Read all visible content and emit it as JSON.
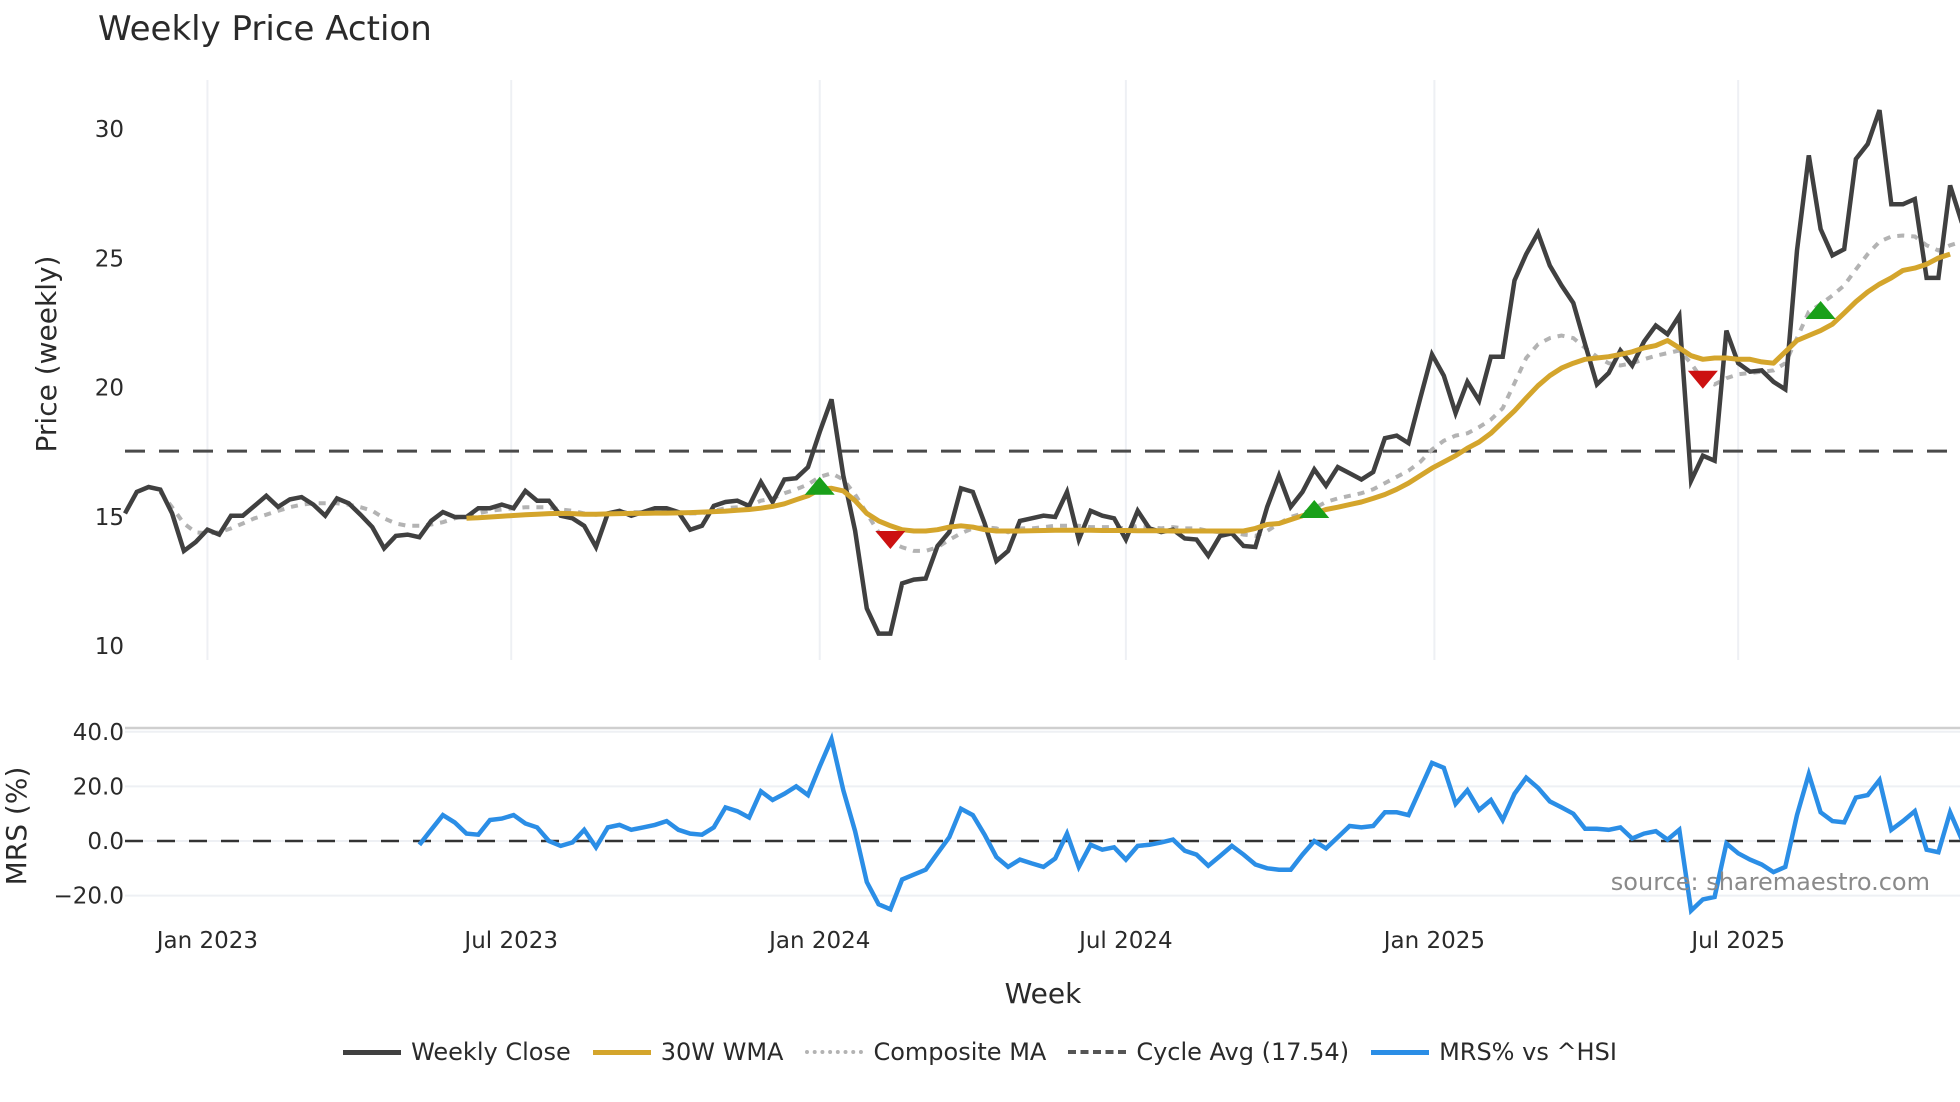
{
  "chart_data": {
    "type": "line",
    "title": "Weekly Price Action",
    "xlabel": "Week",
    "source": "source: sharemaestro.com",
    "x_ticks": [
      {
        "label": "Jan 2023",
        "index": 7
      },
      {
        "label": "Jul 2023",
        "index": 32.8
      },
      {
        "label": "Jan 2024",
        "index": 59
      },
      {
        "label": "Jul 2024",
        "index": 85
      },
      {
        "label": "Jan 2025",
        "index": 111.2
      },
      {
        "label": "Jul 2025",
        "index": 137
      }
    ],
    "price_panel": {
      "ylabel": "Price (weekly)",
      "ylim": [
        9.5,
        31.5
      ],
      "y_ticks": [
        "10",
        "15",
        "20",
        "25",
        "30"
      ],
      "cycle_avg": 17.54,
      "series": [
        {
          "name": "Weekly Close",
          "color": "#404040",
          "start_index": 0,
          "values": [
            15.13,
            15.96,
            16.15,
            16.05,
            15.13,
            13.68,
            14.02,
            14.5,
            14.31,
            15.04,
            15.04,
            15.42,
            15.81,
            15.38,
            15.67,
            15.76,
            15.47,
            15.04,
            15.71,
            15.52,
            15.08,
            14.6,
            13.78,
            14.26,
            14.31,
            14.21,
            14.84,
            15.18,
            14.99,
            14.99,
            15.33,
            15.33,
            15.47,
            15.33,
            16.0,
            15.62,
            15.62,
            15.04,
            14.94,
            14.65,
            13.83,
            15.13,
            15.23,
            15.04,
            15.18,
            15.33,
            15.33,
            15.18,
            14.5,
            14.65,
            15.42,
            15.57,
            15.62,
            15.42,
            16.34,
            15.57,
            16.44,
            16.49,
            16.92,
            18.28,
            19.54,
            16.59,
            14.46,
            11.45,
            10.48,
            10.48,
            12.42,
            12.57,
            12.61,
            13.87,
            14.41,
            16.1,
            15.96,
            14.75,
            13.29,
            13.68,
            14.84,
            14.94,
            15.04,
            14.99,
            15.96,
            14.12,
            15.23,
            15.04,
            14.94,
            14.12,
            15.23,
            14.55,
            14.41,
            14.5,
            14.16,
            14.12,
            13.49,
            14.26,
            14.36,
            13.87,
            13.83,
            15.38,
            16.59,
            15.38,
            15.96,
            16.83,
            16.2,
            16.92,
            16.68,
            16.44,
            16.73,
            18.04,
            18.14,
            17.85,
            19.59,
            21.28,
            20.46,
            19.01,
            20.22,
            19.49,
            21.19,
            21.19,
            24.14,
            25.16,
            25.98,
            24.72,
            23.95,
            23.27,
            21.67,
            20.12,
            20.56,
            21.43,
            20.85,
            21.77,
            22.4,
            22.06,
            22.78,
            16.39,
            17.36,
            17.17,
            22.2,
            20.94,
            20.61,
            20.66,
            20.22,
            19.93,
            25.3,
            28.98,
            26.13,
            25.11,
            25.35,
            28.84,
            29.42,
            30.73,
            27.09,
            27.09,
            27.29,
            24.24,
            24.24,
            27.82,
            26.37
          ]
        },
        {
          "name": "30W WMA",
          "color": "#d4a52c",
          "start_index": 29,
          "values": [
            14.94,
            14.96,
            14.99,
            15.02,
            15.05,
            15.08,
            15.1,
            15.12,
            15.13,
            15.12,
            15.1,
            15.1,
            15.11,
            15.12,
            15.13,
            15.13,
            15.14,
            15.14,
            15.15,
            15.16,
            15.18,
            15.2,
            15.22,
            15.25,
            15.28,
            15.33,
            15.4,
            15.5,
            15.66,
            15.81,
            16.06,
            16.1,
            16.0,
            15.62,
            15.13,
            14.84,
            14.65,
            14.5,
            14.45,
            14.45,
            14.5,
            14.6,
            14.65,
            14.6,
            14.5,
            14.45,
            14.45,
            14.45,
            14.46,
            14.47,
            14.48,
            14.48,
            14.48,
            14.48,
            14.47,
            14.47,
            14.47,
            14.46,
            14.46,
            14.46,
            14.45,
            14.45,
            14.45,
            14.45,
            14.45,
            14.45,
            14.45,
            14.55,
            14.7,
            14.74,
            14.89,
            15.04,
            15.13,
            15.28,
            15.37,
            15.47,
            15.57,
            15.71,
            15.86,
            16.06,
            16.3,
            16.59,
            16.88,
            17.12,
            17.36,
            17.65,
            17.89,
            18.23,
            18.67,
            19.1,
            19.59,
            20.07,
            20.46,
            20.75,
            20.94,
            21.09,
            21.14,
            21.19,
            21.28,
            21.38,
            21.53,
            21.62,
            21.82,
            21.53,
            21.23,
            21.09,
            21.14,
            21.14,
            21.09,
            21.09,
            20.99,
            20.94,
            21.38,
            21.82,
            22.01,
            22.2,
            22.45,
            22.88,
            23.32,
            23.7,
            24.0,
            24.24,
            24.53,
            24.62,
            24.77,
            25.01,
            25.16
          ]
        },
        {
          "name": "Composite MA",
          "color": "#b3b3b3",
          "start_index": 3,
          "values": [
            15.96,
            15.37,
            14.74,
            14.4,
            14.36,
            14.4,
            14.55,
            14.74,
            14.94,
            15.08,
            15.23,
            15.37,
            15.47,
            15.52,
            15.52,
            15.52,
            15.47,
            15.37,
            15.23,
            14.94,
            14.74,
            14.65,
            14.65,
            14.7,
            14.79,
            14.94,
            15.04,
            15.13,
            15.23,
            15.28,
            15.33,
            15.37,
            15.37,
            15.37,
            15.28,
            15.23,
            15.13,
            15.08,
            15.13,
            15.18,
            15.18,
            15.18,
            15.23,
            15.23,
            15.18,
            15.13,
            15.13,
            15.23,
            15.33,
            15.37,
            15.42,
            15.62,
            15.71,
            15.91,
            16.06,
            16.25,
            16.54,
            16.68,
            16.44,
            15.86,
            15.13,
            14.4,
            14.02,
            13.82,
            13.68,
            13.68,
            13.82,
            14.11,
            14.36,
            14.55,
            14.6,
            14.55,
            14.4,
            14.55,
            14.55,
            14.6,
            14.65,
            14.65,
            14.65,
            14.6,
            14.6,
            14.6,
            14.55,
            14.65,
            14.6,
            14.55,
            14.6,
            14.55,
            14.55,
            14.45,
            14.4,
            14.4,
            14.31,
            14.26,
            14.45,
            14.74,
            14.99,
            15.13,
            15.33,
            15.57,
            15.71,
            15.81,
            15.91,
            16.06,
            16.3,
            16.54,
            16.78,
            17.12,
            17.6,
            17.94,
            18.14,
            18.23,
            18.47,
            18.76,
            19.2,
            20.17,
            21.14,
            21.67,
            21.91,
            22.01,
            21.91,
            21.53,
            21.19,
            20.94,
            20.85,
            20.94,
            21.09,
            21.23,
            21.33,
            21.43,
            20.94,
            20.27,
            20.12,
            20.36,
            20.51,
            20.56,
            20.61,
            20.66,
            20.94,
            21.91,
            22.93,
            23.22,
            23.56,
            23.95,
            24.57,
            25.16,
            25.64,
            25.84,
            25.88,
            25.84,
            25.5,
            25.3,
            25.5,
            25.64
          ]
        }
      ],
      "signals": [
        {
          "type": "buy",
          "index": 59,
          "value": 16.2,
          "color": "#1aa01a"
        },
        {
          "type": "sell",
          "index": 65,
          "value": 14.1,
          "color": "#cc1111"
        },
        {
          "type": "buy",
          "index": 101,
          "value": 15.3,
          "color": "#1aa01a"
        },
        {
          "type": "sell",
          "index": 134,
          "value": 20.3,
          "color": "#cc1111"
        },
        {
          "type": "buy",
          "index": 144,
          "value": 23.0,
          "color": "#1aa01a"
        }
      ]
    },
    "mrs_panel": {
      "ylabel": "MRS (%)",
      "ylim": [
        -28,
        43
      ],
      "y_ticks": [
        "40.0",
        "20.0",
        "0.0",
        "−20.0"
      ],
      "y_tick_values": [
        40,
        20,
        0,
        -20
      ],
      "series": [
        {
          "name": "MRS% vs ^HSI",
          "color": "#2b8ee6",
          "start_index": 25,
          "values": [
            -1.4,
            4.1,
            9.5,
            6.8,
            2.7,
            2.3,
            7.7,
            8.2,
            9.5,
            6.4,
            5.0,
            0.0,
            -1.8,
            -0.5,
            4.1,
            -2.3,
            5.0,
            5.9,
            4.1,
            5.0,
            5.9,
            7.3,
            4.1,
            2.7,
            2.3,
            5.0,
            12.3,
            10.9,
            8.6,
            18.2,
            15.0,
            17.3,
            20.0,
            16.8,
            27.3,
            37.3,
            18.6,
            3.6,
            -15.0,
            -23.2,
            -25.0,
            -14.1,
            -12.3,
            -10.5,
            -4.5,
            1.4,
            11.8,
            9.5,
            2.3,
            -5.9,
            -9.5,
            -6.8,
            -8.2,
            -9.5,
            -6.4,
            2.7,
            -9.5,
            -1.4,
            -3.2,
            -2.3,
            -6.8,
            -1.8,
            -1.4,
            -0.5,
            0.5,
            -3.6,
            -5.0,
            -9.1,
            -5.5,
            -1.8,
            -5.0,
            -8.6,
            -10.0,
            -10.5,
            -10.5,
            -5.0,
            0.0,
            -2.7,
            1.4,
            5.5,
            5.0,
            5.5,
            10.5,
            10.5,
            9.5,
            19.1,
            28.6,
            26.8,
            13.6,
            18.6,
            11.4,
            15.0,
            7.7,
            17.3,
            23.2,
            19.5,
            14.5,
            12.3,
            10.0,
            4.5,
            4.5,
            4.1,
            5.0,
            0.9,
            2.7,
            3.6,
            0.5,
            4.1,
            -25.5,
            -21.4,
            -20.5,
            -0.9,
            -4.5,
            -6.8,
            -8.6,
            -11.4,
            -9.5,
            9.5,
            24.5,
            10.5,
            7.3,
            6.8,
            15.9,
            16.8,
            22.3,
            4.1,
            7.3,
            10.9,
            -3.2,
            -4.1,
            10.5,
            0.5
          ]
        }
      ]
    },
    "legend": [
      {
        "label": "Weekly Close",
        "style": "solid",
        "color": "#404040"
      },
      {
        "label": "30W WMA",
        "style": "solid",
        "color": "#d4a52c"
      },
      {
        "label": "Composite MA",
        "style": "dotted",
        "color": "#b3b3b3"
      },
      {
        "label": "Cycle Avg (17.54)",
        "style": "dashed",
        "color": "#555555"
      },
      {
        "label": "MRS% vs ^HSI",
        "style": "solid",
        "color": "#2b8ee6"
      }
    ]
  }
}
